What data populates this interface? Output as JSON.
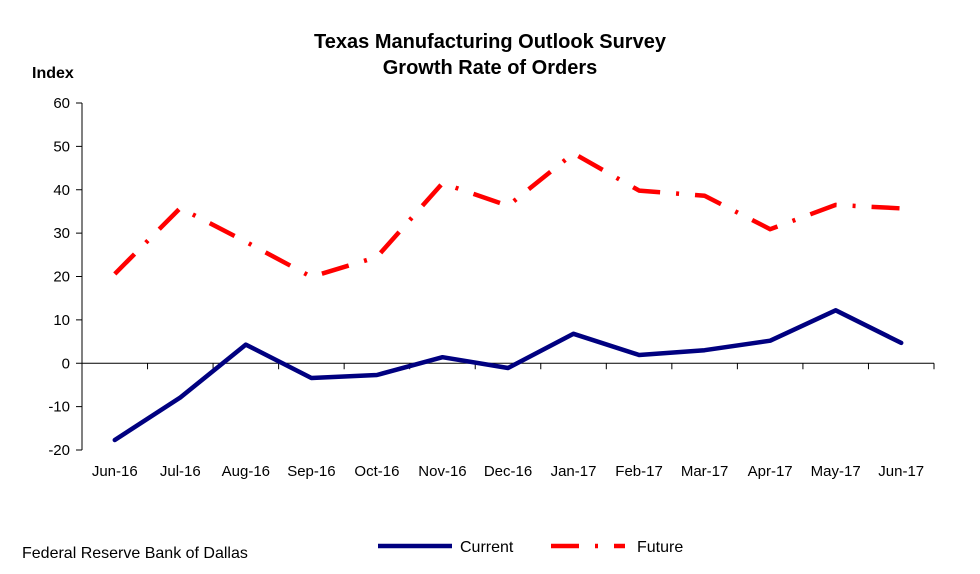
{
  "chart_data": {
    "type": "line",
    "title": "Texas Manufacturing Outlook Survey",
    "subtitle": "Growth Rate of Orders",
    "ylabel": "Index",
    "xlabel": "",
    "ylim": [
      -20,
      60
    ],
    "yticks": [
      "60",
      "50",
      "40",
      "30",
      "20",
      "10",
      "0",
      "-10",
      "-20"
    ],
    "ytick_values": [
      60,
      50,
      40,
      30,
      20,
      10,
      0,
      -10,
      -20
    ],
    "categories": [
      "Jun-16",
      "Jul-16",
      "Aug-16",
      "Sep-16",
      "Oct-16",
      "Nov-16",
      "Dec-16",
      "Jan-17",
      "Feb-17",
      "Mar-17",
      "Apr-17",
      "May-17",
      "Jun-17"
    ],
    "grid": false,
    "legend_position": "bottom",
    "series": [
      {
        "name": "Current",
        "color": "#000080",
        "style": "solid",
        "values": [
          -17.7,
          -7.9,
          4.3,
          -3.4,
          -2.7,
          1.4,
          -1.1,
          6.8,
          1.9,
          3.0,
          5.2,
          12.2,
          4.7
        ]
      },
      {
        "name": "Future",
        "color": "#ff0000",
        "style": "dash-dot",
        "values": [
          20.6,
          35.8,
          28.0,
          19.9,
          24.5,
          41.5,
          36.3,
          48.4,
          39.8,
          38.6,
          30.9,
          36.5,
          35.7
        ]
      }
    ]
  },
  "source": "Federal Reserve Bank of Dallas"
}
